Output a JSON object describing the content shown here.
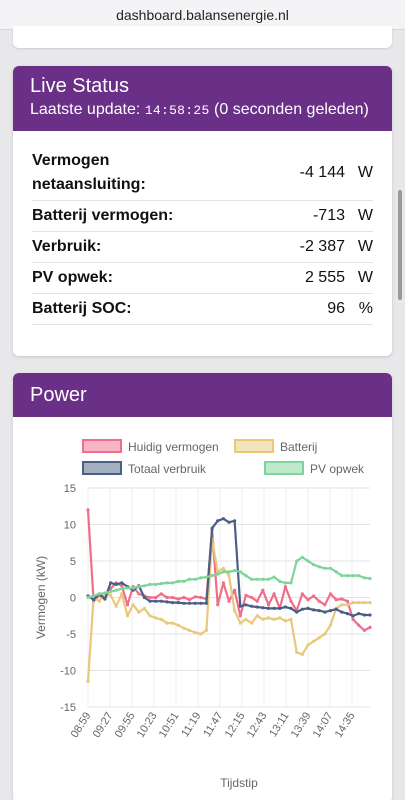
{
  "browser": {
    "url": "dashboard.balansenergie.nl"
  },
  "live": {
    "title": "Live Status",
    "update_label": "Laatste update:",
    "update_time": "14:58:25",
    "update_ago": "(0 seconden geleden)",
    "rows": [
      {
        "label": "Vermogen netaansluiting:",
        "value": "-4 144",
        "unit": "W"
      },
      {
        "label": "Batterij vermogen:",
        "value": "-713",
        "unit": "W"
      },
      {
        "label": "Verbruik:",
        "value": "-2 387",
        "unit": "W"
      },
      {
        "label": "PV opwek:",
        "value": "2 555",
        "unit": "W"
      },
      {
        "label": "Batterij SOC:",
        "value": "96",
        "unit": "%"
      }
    ]
  },
  "power": {
    "title": "Power"
  },
  "chart_data": {
    "type": "line",
    "xlabel": "Tijdstip",
    "ylabel": "Vermogen (kW)",
    "ylim": [
      -15,
      15
    ],
    "yticks": [
      15,
      10,
      5,
      0,
      -5,
      -10,
      -15
    ],
    "xticks": [
      "08:59",
      "09:27",
      "09:55",
      "10:23",
      "10:51",
      "11:19",
      "11:47",
      "12:15",
      "12:43",
      "13:11",
      "13:39",
      "14:07",
      "14:35"
    ],
    "x": [
      "08:59",
      "09:03",
      "09:07",
      "09:11",
      "09:15",
      "09:20",
      "09:27",
      "09:35",
      "09:42",
      "09:50",
      "09:55",
      "10:05",
      "10:15",
      "10:23",
      "10:35",
      "10:45",
      "10:51",
      "11:00",
      "11:10",
      "11:19",
      "11:28",
      "11:38",
      "11:47",
      "11:55",
      "12:00",
      "12:05",
      "12:10",
      "12:15",
      "12:20",
      "12:25",
      "12:30",
      "12:35",
      "12:43",
      "12:50",
      "12:55",
      "13:00",
      "13:05",
      "13:11",
      "13:18",
      "13:25",
      "13:32",
      "13:39",
      "13:45",
      "13:52",
      "14:00",
      "14:07",
      "14:15",
      "14:25",
      "14:35",
      "14:45",
      "14:55"
    ],
    "legend_position": "top",
    "grid": true,
    "series": [
      {
        "name": "Huidig vermogen",
        "color": "#f06d8c",
        "values": [
          12,
          -0.5,
          0.3,
          -0.2,
          1.2,
          2.0,
          1.6,
          -1.0,
          1.5,
          0.5,
          0.2,
          0,
          0,
          0.5,
          0,
          0,
          -0.2,
          0,
          -0.3,
          0.1,
          0,
          -0.2,
          9.3,
          -1.0,
          2.0,
          -0.5,
          1.0,
          -2.5,
          0.3,
          0,
          -0.5,
          1.0,
          -1.0,
          0.5,
          -1.5,
          1.5,
          -0.5,
          -1.8,
          0.5,
          -0.3,
          0.2,
          -0.5,
          -1.0,
          0.5,
          -0.3,
          -0.2,
          -0.5,
          -3.0,
          -3.8,
          -4.5,
          -4.1
        ]
      },
      {
        "name": "Batterij",
        "color": "#e8c87a",
        "values": [
          -11.5,
          0,
          -0.5,
          0.5,
          0.3,
          -1.2,
          0.5,
          -2.5,
          -1.0,
          -2.0,
          -1.5,
          -2.5,
          -2.8,
          -3.0,
          -3.5,
          -3.5,
          -3.8,
          -4.2,
          -4.5,
          -4.8,
          -5.0,
          -4.5,
          8.0,
          3.5,
          4.0,
          3.0,
          -1.8,
          -3.5,
          -3.0,
          -3.5,
          -2.5,
          -3.0,
          -2.8,
          -3.0,
          -2.8,
          -3.2,
          -3.0,
          -7.5,
          -7.8,
          -6.5,
          -6.0,
          -5.5,
          -5.0,
          -3.8,
          -1.5,
          -1.0,
          -1.0,
          -0.7,
          -0.7,
          -0.7,
          -0.7
        ]
      },
      {
        "name": "Totaal verbruik",
        "color": "#4a5f85",
        "values": [
          0.2,
          -0.3,
          0.5,
          -0.2,
          2.0,
          1.8,
          2.0,
          1.5,
          1.0,
          1.6,
          0,
          -0.5,
          -0.5,
          -0.5,
          -0.6,
          -0.7,
          -0.7,
          -0.8,
          -0.8,
          -0.8,
          -0.8,
          -0.8,
          9.5,
          10.5,
          10.8,
          10.3,
          10.5,
          -1.2,
          -1.0,
          -1.2,
          -1.3,
          -1.4,
          -1.5,
          -1.5,
          -1.5,
          -1.3,
          -1.5,
          -2.0,
          -1.6,
          -1.5,
          -1.7,
          -1.8,
          -2.0,
          -1.8,
          -1.6,
          -2.0,
          -2.2,
          -2.5,
          -2.2,
          -2.4,
          -2.4
        ]
      },
      {
        "name": "PV opwek",
        "color": "#7fd49a",
        "values": [
          0,
          0.2,
          0.5,
          0.6,
          0.8,
          1.0,
          1.2,
          1.3,
          1.3,
          1.5,
          1.6,
          1.8,
          1.8,
          1.9,
          2.0,
          2.0,
          2.2,
          2.2,
          2.5,
          2.5,
          2.7,
          2.8,
          3.0,
          3.2,
          3.5,
          3.5,
          3.7,
          3.5,
          3.0,
          2.5,
          2.5,
          2.5,
          2.5,
          2.8,
          2.2,
          2.0,
          2.0,
          5.0,
          5.5,
          5.0,
          4.5,
          4.2,
          4.0,
          4.0,
          3.5,
          3.0,
          3.0,
          3.0,
          3.0,
          2.7,
          2.6
        ]
      }
    ]
  }
}
